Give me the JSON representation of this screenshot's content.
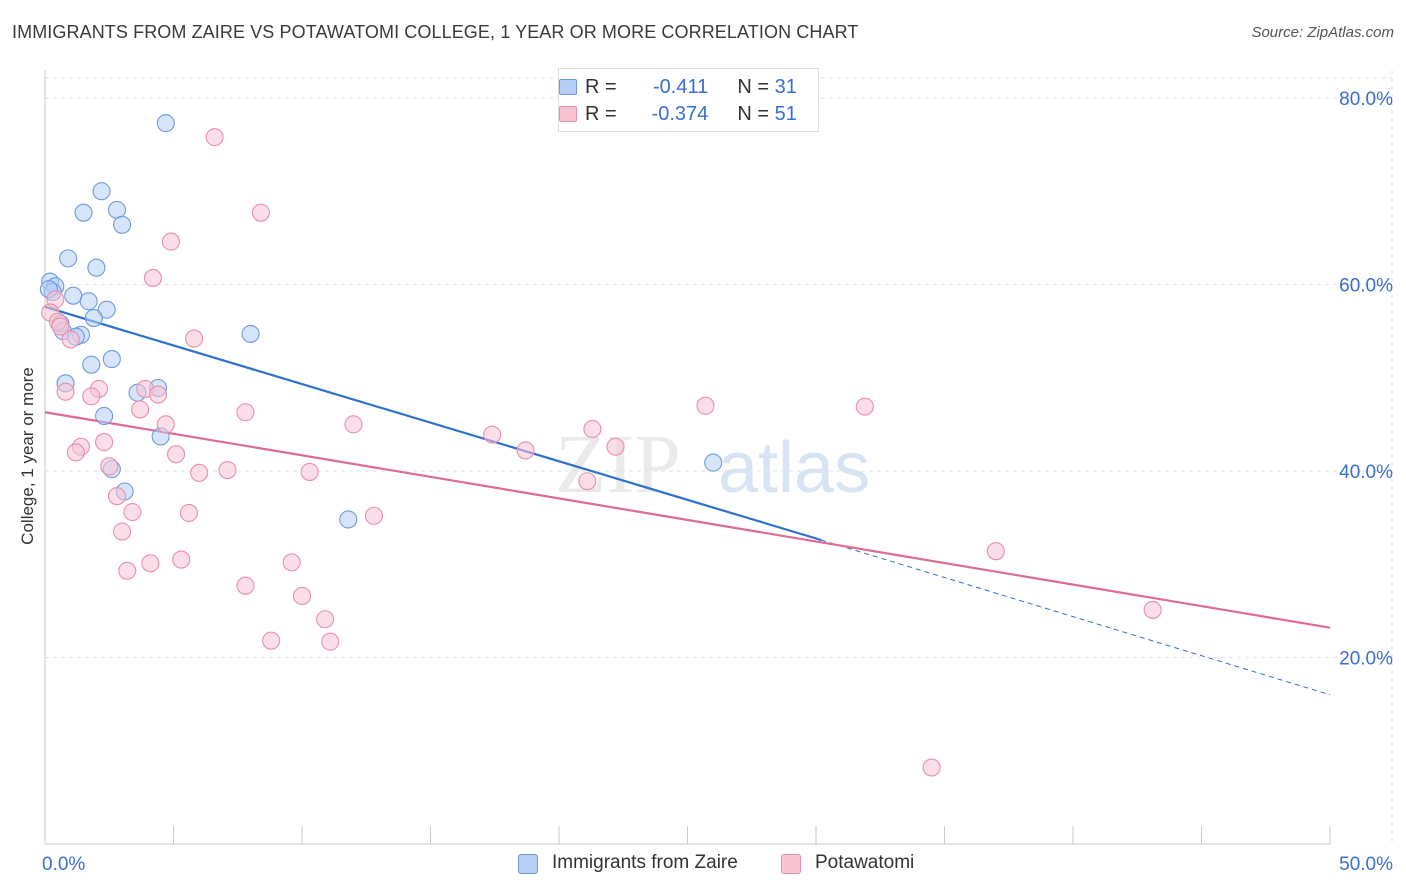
{
  "title": "IMMIGRANTS FROM ZAIRE VS POTAWATOMI COLLEGE, 1 YEAR OR MORE CORRELATION CHART",
  "source": "Source: ZipAtlas.com",
  "watermark": {
    "zip": "ZIP",
    "atlas": "atlas"
  },
  "colors": {
    "blue_fill": "#b7cff5",
    "blue_stroke": "#6f9ae0",
    "blue_line": "#2f6fd0",
    "pink_fill": "#f8c3d3",
    "pink_stroke": "#e890ab",
    "pink_line": "#e06a95",
    "tick_label": "#3a6fd0",
    "grid": "#dde3ea"
  },
  "stats": [
    {
      "r_label": "R =",
      "r_value": "-0.411",
      "n_label": "N =",
      "n_value": "31",
      "color": "blue"
    },
    {
      "r_label": "R =",
      "r_value": "-0.374",
      "n_label": "N =",
      "n_value": "51",
      "color": "pink"
    }
  ],
  "legend": [
    {
      "label": "Immigrants from Zaire",
      "color": "blue"
    },
    {
      "label": "Potawatomi",
      "color": "pink"
    }
  ],
  "chart_data": {
    "type": "scatter",
    "title": "IMMIGRANTS FROM ZAIRE VS POTAWATOMI COLLEGE, 1 YEAR OR MORE CORRELATION CHART",
    "xlabel": "",
    "ylabel": "College, 1 year or more",
    "xlim": [
      0,
      50
    ],
    "ylim": [
      0,
      83
    ],
    "x_tick_labels": [
      {
        "value": 0,
        "label": "0.0%"
      },
      {
        "value": 50,
        "label": "50.0%"
      }
    ],
    "y_tick_labels": [
      {
        "value": 20,
        "label": "20.0%"
      },
      {
        "value": 40,
        "label": "40.0%"
      },
      {
        "value": 60,
        "label": "60.0%"
      },
      {
        "value": 80,
        "label": "80.0%"
      }
    ],
    "grid": true,
    "series": [
      {
        "name": "Immigrants from Zaire",
        "color": "blue",
        "points": [
          [
            4.7,
            77.3
          ],
          [
            2.2,
            70.0
          ],
          [
            1.5,
            67.7
          ],
          [
            2.8,
            68.0
          ],
          [
            3.0,
            66.4
          ],
          [
            0.9,
            62.8
          ],
          [
            2.0,
            61.8
          ],
          [
            0.2,
            60.3
          ],
          [
            0.4,
            59.8
          ],
          [
            0.3,
            59.2
          ],
          [
            1.1,
            58.8
          ],
          [
            1.7,
            58.2
          ],
          [
            2.4,
            57.3
          ],
          [
            1.9,
            56.4
          ],
          [
            0.6,
            55.8
          ],
          [
            0.7,
            55.0
          ],
          [
            1.4,
            54.6
          ],
          [
            1.2,
            54.4
          ],
          [
            8.0,
            54.7
          ],
          [
            2.6,
            52.0
          ],
          [
            1.8,
            51.4
          ],
          [
            0.8,
            49.4
          ],
          [
            4.4,
            48.9
          ],
          [
            3.6,
            48.4
          ],
          [
            2.3,
            45.9
          ],
          [
            4.5,
            43.7
          ],
          [
            2.6,
            40.2
          ],
          [
            3.1,
            37.8
          ],
          [
            11.8,
            34.8
          ],
          [
            26.0,
            40.9
          ],
          [
            0.15,
            59.5
          ]
        ]
      },
      {
        "name": "Potawatomi",
        "color": "pink",
        "points": [
          [
            6.6,
            75.8
          ],
          [
            8.4,
            67.7
          ],
          [
            4.9,
            64.6
          ],
          [
            4.2,
            60.7
          ],
          [
            0.4,
            58.4
          ],
          [
            0.2,
            57.0
          ],
          [
            0.5,
            56.0
          ],
          [
            0.6,
            55.5
          ],
          [
            1.0,
            54.1
          ],
          [
            5.8,
            54.2
          ],
          [
            0.8,
            48.5
          ],
          [
            2.1,
            48.8
          ],
          [
            3.9,
            48.8
          ],
          [
            1.8,
            48.0
          ],
          [
            4.4,
            48.2
          ],
          [
            3.7,
            46.6
          ],
          [
            7.8,
            46.3
          ],
          [
            12.0,
            45.0
          ],
          [
            4.7,
            45.0
          ],
          [
            17.4,
            43.9
          ],
          [
            21.3,
            44.5
          ],
          [
            25.7,
            47.0
          ],
          [
            31.9,
            46.9
          ],
          [
            18.7,
            42.2
          ],
          [
            22.2,
            42.6
          ],
          [
            1.4,
            42.6
          ],
          [
            1.2,
            42.0
          ],
          [
            2.3,
            43.1
          ],
          [
            5.1,
            41.8
          ],
          [
            2.5,
            40.5
          ],
          [
            6.0,
            39.8
          ],
          [
            7.1,
            40.1
          ],
          [
            10.3,
            39.9
          ],
          [
            21.1,
            38.9
          ],
          [
            2.8,
            37.3
          ],
          [
            3.4,
            35.6
          ],
          [
            5.6,
            35.5
          ],
          [
            12.8,
            35.2
          ],
          [
            3.0,
            33.5
          ],
          [
            5.3,
            30.5
          ],
          [
            4.1,
            30.1
          ],
          [
            9.6,
            30.2
          ],
          [
            3.2,
            29.3
          ],
          [
            7.8,
            27.7
          ],
          [
            10.0,
            26.6
          ],
          [
            10.9,
            24.1
          ],
          [
            8.8,
            21.8
          ],
          [
            11.1,
            21.7
          ],
          [
            37.0,
            31.4
          ],
          [
            43.1,
            25.1
          ],
          [
            34.5,
            8.2
          ]
        ]
      }
    ],
    "trend_lines": [
      {
        "series": "Immigrants from Zaire",
        "x0": 0,
        "y0": 57.6,
        "x1": 30.2,
        "y1": 32.6,
        "dashed_to_x": 50,
        "dashed_to_y": 16.0
      },
      {
        "series": "Potawatomi",
        "x0": 0,
        "y0": 46.3,
        "x1": 50,
        "y1": 23.2
      }
    ]
  }
}
